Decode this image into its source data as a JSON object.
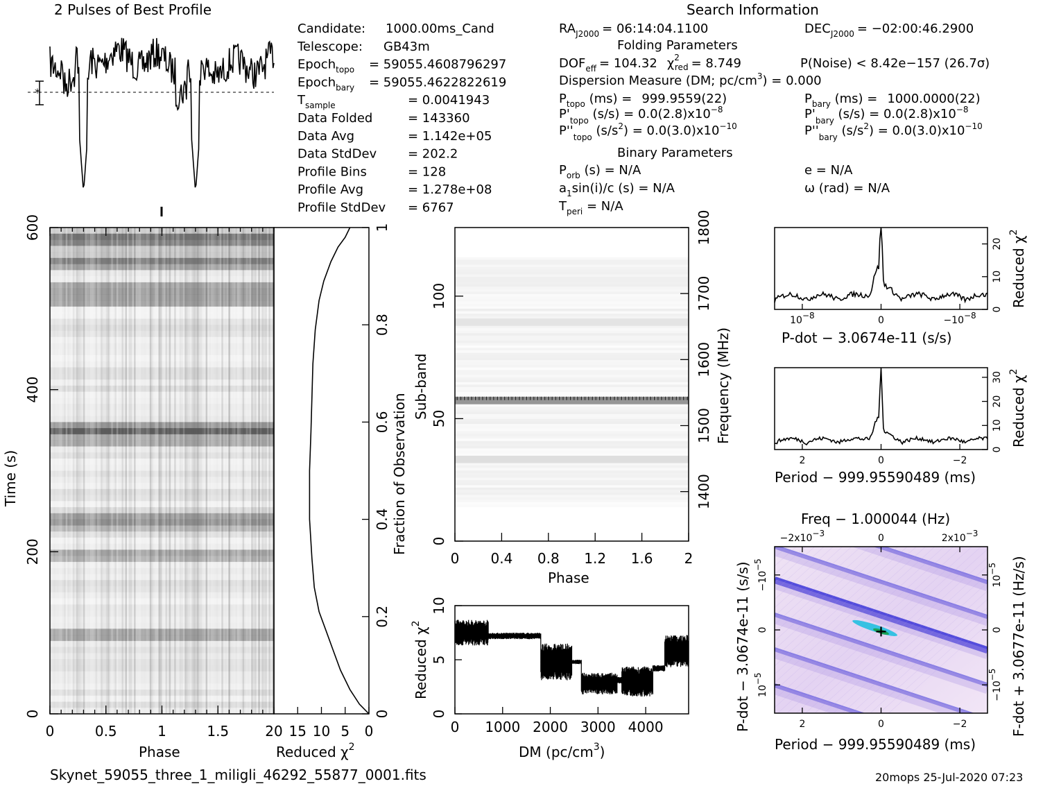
{
  "page": {
    "title": "2 Pulses of Best Profile",
    "search_heading": "Search Information",
    "filename": "Skynet_59055_three_1_miligli_46292_55877_0001.fits",
    "footer_stamp": "20mops 25-Jul-2020 07:23"
  },
  "info_left": [
    {
      "label": "Candidate:",
      "value": "1000.00ms_Cand"
    },
    {
      "label": "Telescope:",
      "value": "GB43m"
    },
    {
      "label": "Epoch",
      "sub": "topo",
      "value": "= 59055.4608796297"
    },
    {
      "label": "Epoch",
      "sub": "bary",
      "value": "= 59055.4622822619"
    },
    {
      "label": "T",
      "sub": "sample",
      "value": "0.0041943"
    },
    {
      "label": "Data Folded",
      "value": "143360"
    },
    {
      "label": "Data Avg",
      "value": "1.142e+05"
    },
    {
      "label": "Data StdDev",
      "value": "202.2"
    },
    {
      "label": "Profile Bins",
      "value": "128"
    },
    {
      "label": "Profile Avg",
      "value": "1.278e+08"
    },
    {
      "label": "Profile StdDev",
      "value": "6767"
    }
  ],
  "info_right": {
    "ra": {
      "label": "RA",
      "sub": "J2000",
      "value": "= 06:14:04.1100"
    },
    "dec": {
      "label": "DEC",
      "sub": "J2000",
      "value": "= −02:00:46.2900"
    },
    "folding_heading": "Folding Parameters",
    "dof": "DOF",
    "dof_sub": "eff",
    "dof_value": "= 104.32",
    "chi_label": "χ",
    "chi_sub": "red",
    "chi_value": "= 8.749",
    "pnoise": "P(Noise) < 8.42e−157   (26.7σ)",
    "dm_line": "Dispersion Measure (DM; pc/cm",
    "dm_value": ") = 0.000",
    "ptopo": {
      "label": "P",
      "sub": "topo",
      "unit": " (ms) =",
      "value": "999.9559(22)"
    },
    "pbary": {
      "label": "P",
      "sub": "bary",
      "unit": " (ms) =",
      "value": "1000.0000(22)"
    },
    "pdtopo": {
      "label": "P'",
      "sub": "topo",
      "unit": " (s/s) = 0.0(2.8)x10",
      "exp": "−8"
    },
    "pdbary": {
      "label": "P'",
      "sub": "bary",
      "unit": " (s/s) = 0.0(2.8)x10",
      "exp": "−8"
    },
    "pddtopo": {
      "label": "P''",
      "sub": "topo",
      "unit": " (s/s",
      "unit2": ") = 0.0(3.0)x10",
      "exp": "−10"
    },
    "pddbary": {
      "label": "P''",
      "sub": "bary",
      "unit": " (s/s",
      "unit2": ") = 0.0(3.0)x10",
      "exp": "−10"
    },
    "binary_heading": "Binary Parameters",
    "porb": {
      "label": "P",
      "sub": "orb",
      "value": " (s) = N/A"
    },
    "asini": {
      "label": "a",
      "sub": "1",
      "value": "sin(i)/c (s) = N/A"
    },
    "tperi": {
      "label": "T",
      "sub": "peri",
      "value": " = N/A"
    },
    "ecc": "e = N/A",
    "omega": "ω (rad) = N/A"
  },
  "chart_data": [
    {
      "id": "profile",
      "type": "line",
      "title": "2 Pulses of Best Profile",
      "x_range": [
        0,
        2
      ],
      "dips_at_phase": [
        0.3,
        1.3
      ],
      "error_bar": "±1σ"
    },
    {
      "id": "time-phase",
      "type": "heatmap",
      "xlabel": "Phase",
      "ylabel": "Time (s)",
      "x_ticks": [
        "0",
        "0.5",
        "1",
        "1.5"
      ],
      "y_ticks": [
        "0",
        "200",
        "400",
        "600"
      ],
      "x_range": [
        0,
        2
      ],
      "y_range": [
        0,
        600
      ],
      "dark_rows_time_s": [
        590,
        560,
        530,
        515,
        355,
        345,
        240,
        200,
        100
      ]
    },
    {
      "id": "time-chi2",
      "type": "line",
      "xlabel": "Reduced χ",
      "ylabel": "Fraction of Observation",
      "x_ticks": [
        "20",
        "15",
        "10",
        "5",
        "0"
      ],
      "y_ticks": [
        "0",
        "0.2",
        "0.4",
        "0.6",
        "0.8",
        "1"
      ],
      "x_range": [
        20,
        0
      ],
      "points": [
        [
          0,
          0
        ],
        [
          2,
          0.02
        ],
        [
          4,
          0.05
        ],
        [
          6,
          0.09
        ],
        [
          7.5,
          0.13
        ],
        [
          9,
          0.17
        ],
        [
          10.5,
          0.21
        ],
        [
          11.5,
          0.26
        ],
        [
          12,
          0.32
        ],
        [
          12.5,
          0.4
        ],
        [
          12.5,
          0.5
        ],
        [
          12.2,
          0.58
        ],
        [
          12,
          0.65
        ],
        [
          11.8,
          0.72
        ],
        [
          11.3,
          0.79
        ],
        [
          10.5,
          0.85
        ],
        [
          9.5,
          0.89
        ],
        [
          8,
          0.93
        ],
        [
          6.5,
          0.96
        ],
        [
          5,
          0.98
        ],
        [
          4,
          1.0
        ]
      ]
    },
    {
      "id": "subband-phase",
      "type": "heatmap",
      "xlabel": "Phase",
      "ylabel": "Sub-band",
      "y2label": "Frequency (MHz)",
      "x_ticks": [
        "0",
        "0.4",
        "0.8",
        "1.2",
        "1.6",
        "2"
      ],
      "y_ticks": [
        "0",
        "50",
        "100"
      ],
      "y2_ticks": [
        "1400",
        "1500",
        "1600",
        "1700",
        "1800"
      ],
      "x_range": [
        0,
        2
      ],
      "y_range": [
        0,
        128
      ],
      "y2_range": [
        1325,
        1800
      ],
      "bright_band_subband": 58
    },
    {
      "id": "dm-chi2",
      "type": "line",
      "xlabel": "DM (pc/cm",
      "ylabel": "Reduced χ",
      "x_ticks": [
        "0",
        "1000",
        "2000",
        "3000",
        "4000"
      ],
      "y_ticks": [
        "0",
        "5",
        "10"
      ],
      "x_range": [
        0,
        4900
      ],
      "y_range": [
        0,
        10
      ],
      "segments": [
        {
          "x": [
            0,
            700
          ],
          "center": 7.5,
          "spread": 1.2
        },
        {
          "x": [
            700,
            1800
          ],
          "center": 7.2,
          "spread": 0.3
        },
        {
          "x": [
            1800,
            2450
          ],
          "center": 4.8,
          "spread": 1.7
        },
        {
          "x": [
            2450,
            2650
          ],
          "center": 4.8,
          "spread": 0.2
        },
        {
          "x": [
            2650,
            3400
          ],
          "center": 2.8,
          "spread": 1.0
        },
        {
          "x": [
            3400,
            3500
          ],
          "center": 3.1,
          "spread": 0.3
        },
        {
          "x": [
            3500,
            4150
          ],
          "center": 3.0,
          "spread": 1.4
        },
        {
          "x": [
            4150,
            4400
          ],
          "center": 4.2,
          "spread": 0.3
        },
        {
          "x": [
            4400,
            4900
          ],
          "center": 5.8,
          "spread": 1.5
        }
      ]
    },
    {
      "id": "pdot-chi2",
      "type": "line",
      "xlabel": "P-dot − 3.0674e-11 (s/s)",
      "ylabel": "Reduced χ",
      "x_ticks": [
        "10",
        "0",
        "−10"
      ],
      "x_tick_exp": [
        "−8",
        "",
        "−8"
      ],
      "y_ticks": [
        "0",
        "10",
        "20"
      ],
      "y_range": [
        0,
        25
      ],
      "peak": 24
    },
    {
      "id": "period-chi2",
      "type": "line",
      "xlabel": "Period − 999.95590489 (ms)",
      "ylabel": "Reduced χ",
      "x_ticks": [
        "2",
        "0",
        "−2"
      ],
      "y_ticks": [
        "0",
        "10",
        "20",
        "30"
      ],
      "y_range": [
        0,
        34
      ],
      "peak": 32
    },
    {
      "id": "period-pdot",
      "type": "heatmap",
      "title": "Freq − 1.000044 (Hz)",
      "xlabel": "Period − 999.95590489 (ms)",
      "ylabel": "P-dot − 3.0674e-11 (s/s)",
      "y2label": "F-dot + 3.0677e-11 (Hz/s)",
      "x_ticks": [
        "2",
        "0",
        "−2"
      ],
      "top_ticks": [
        "−2x10",
        "0",
        "2x10"
      ],
      "top_tick_exp": "−3",
      "y_ticks": [
        "10",
        "0",
        "−10"
      ],
      "y_tick_exp": "−5",
      "colors": [
        "#f3e7f6",
        "#b39ce6",
        "#3a34d8",
        "#22bfe0"
      ]
    }
  ]
}
